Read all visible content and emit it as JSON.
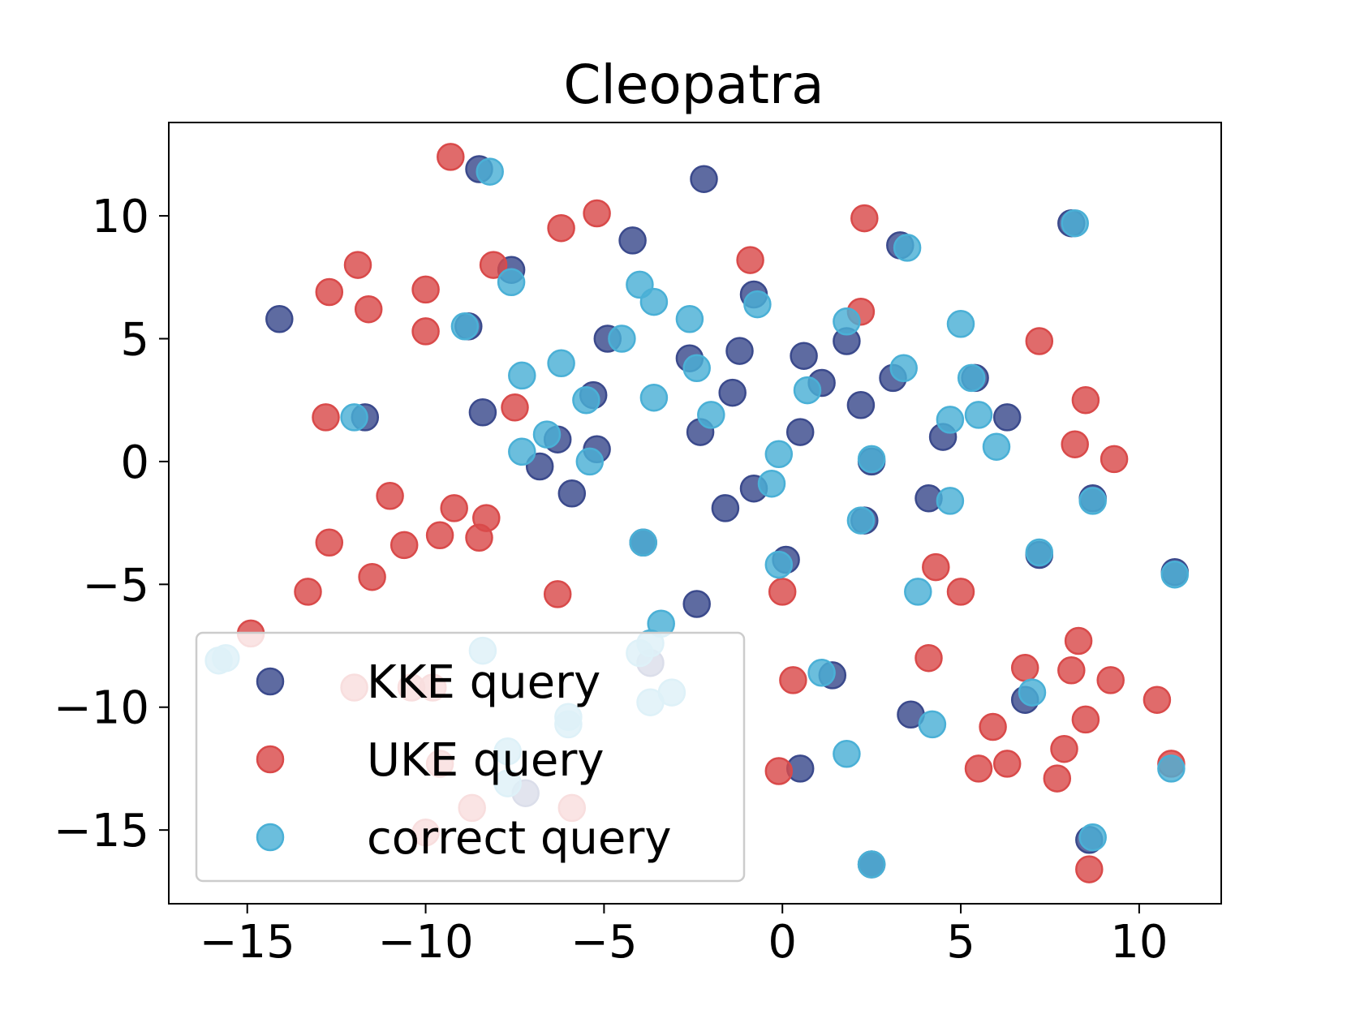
{
  "chart_data": {
    "type": "scatter",
    "title": "Cleopatra",
    "xlabel": "",
    "ylabel": "",
    "xlim": [
      -17.2,
      12.3
    ],
    "ylim": [
      -18,
      13.8
    ],
    "xticks": [
      -15,
      -10,
      -5,
      0,
      5,
      10
    ],
    "yticks": [
      -15,
      -10,
      -5,
      0,
      5,
      10
    ],
    "xtick_labels": [
      "−15",
      "−10",
      "−5",
      "0",
      "5",
      "10"
    ],
    "ytick_labels": [
      "−15",
      "−10",
      "−5",
      "0",
      "5",
      "10"
    ],
    "grid": false,
    "legend_position": "lower-left",
    "series": [
      {
        "name": "KKE query",
        "color": "#3b4a8c",
        "points": [
          [
            -8.5,
            11.9
          ],
          [
            -2.2,
            11.5
          ],
          [
            -4.2,
            9.0
          ],
          [
            -7.6,
            7.8
          ],
          [
            -14.1,
            5.8
          ],
          [
            -8.8,
            5.5
          ],
          [
            -0.8,
            6.8
          ],
          [
            -4.9,
            5.0
          ],
          [
            -1.2,
            4.5
          ],
          [
            -2.6,
            4.2
          ],
          [
            0.6,
            4.3
          ],
          [
            1.1,
            3.2
          ],
          [
            -1.4,
            2.8
          ],
          [
            -5.3,
            2.7
          ],
          [
            -8.4,
            2.0
          ],
          [
            -11.7,
            1.8
          ],
          [
            -2.3,
            1.2
          ],
          [
            0.5,
            1.2
          ],
          [
            2.2,
            2.3
          ],
          [
            3.1,
            3.4
          ],
          [
            -6.3,
            0.9
          ],
          [
            -5.2,
            0.5
          ],
          [
            -6.8,
            -0.2
          ],
          [
            -5.9,
            -1.3
          ],
          [
            -1.6,
            -1.9
          ],
          [
            -0.8,
            -1.1
          ],
          [
            1.8,
            4.9
          ],
          [
            3.3,
            8.8
          ],
          [
            4.5,
            1.0
          ],
          [
            4.1,
            -1.5
          ],
          [
            6.3,
            1.8
          ],
          [
            5.4,
            3.4
          ],
          [
            0.1,
            -4.0
          ],
          [
            -2.4,
            -5.8
          ],
          [
            1.4,
            -8.7
          ],
          [
            -3.7,
            -8.2
          ],
          [
            3.6,
            -10.3
          ],
          [
            6.8,
            -9.7
          ],
          [
            0.5,
            -12.5
          ],
          [
            -7.2,
            -13.5
          ],
          [
            2.5,
            0.0
          ],
          [
            2.3,
            -2.4
          ],
          [
            7.2,
            -3.8
          ],
          [
            8.7,
            -1.5
          ],
          [
            11.0,
            -4.5
          ],
          [
            -3.9,
            -3.3
          ],
          [
            8.1,
            9.7
          ],
          [
            2.5,
            -16.4
          ],
          [
            8.6,
            -15.4
          ]
        ]
      },
      {
        "name": "UKE query",
        "color": "#d94a4a",
        "points": [
          [
            -9.3,
            12.4
          ],
          [
            -5.2,
            10.1
          ],
          [
            -6.2,
            9.5
          ],
          [
            2.3,
            9.9
          ],
          [
            -11.9,
            8.0
          ],
          [
            -8.1,
            8.0
          ],
          [
            -0.9,
            8.2
          ],
          [
            -12.7,
            6.9
          ],
          [
            -10.0,
            7.0
          ],
          [
            -11.6,
            6.2
          ],
          [
            -10.0,
            5.3
          ],
          [
            2.2,
            6.1
          ],
          [
            7.2,
            4.9
          ],
          [
            -12.8,
            1.8
          ],
          [
            -7.5,
            2.2
          ],
          [
            8.5,
            2.5
          ],
          [
            8.2,
            0.7
          ],
          [
            9.3,
            0.1
          ],
          [
            -11.0,
            -1.4
          ],
          [
            -9.2,
            -1.9
          ],
          [
            -8.3,
            -2.3
          ],
          [
            -9.6,
            -3.0
          ],
          [
            -8.5,
            -3.1
          ],
          [
            -12.7,
            -3.3
          ],
          [
            -10.6,
            -3.4
          ],
          [
            -11.5,
            -4.7
          ],
          [
            -13.3,
            -5.3
          ],
          [
            -6.3,
            -5.4
          ],
          [
            -14.9,
            -7.0
          ],
          [
            0.0,
            -5.3
          ],
          [
            4.3,
            -4.3
          ],
          [
            5.0,
            -5.3
          ],
          [
            0.3,
            -8.9
          ],
          [
            4.1,
            -8.0
          ],
          [
            6.8,
            -8.4
          ],
          [
            8.3,
            -7.3
          ],
          [
            8.1,
            -8.5
          ],
          [
            9.2,
            -8.9
          ],
          [
            10.5,
            -9.7
          ],
          [
            8.5,
            -10.5
          ],
          [
            5.9,
            -10.8
          ],
          [
            7.9,
            -11.7
          ],
          [
            6.3,
            -12.3
          ],
          [
            5.5,
            -12.5
          ],
          [
            7.7,
            -12.9
          ],
          [
            10.9,
            -12.3
          ],
          [
            8.6,
            -16.6
          ],
          [
            -0.1,
            -12.6
          ],
          [
            -12.0,
            -9.2
          ],
          [
            -10.4,
            -9.2
          ],
          [
            -9.8,
            -9.2
          ],
          [
            -9.6,
            -12.3
          ],
          [
            -8.7,
            -14.1
          ],
          [
            -10.0,
            -15.1
          ],
          [
            -5.9,
            -14.1
          ]
        ]
      },
      {
        "name": "correct query",
        "color": "#4ab0d6",
        "points": [
          [
            -8.2,
            11.8
          ],
          [
            -4.0,
            7.2
          ],
          [
            -7.6,
            7.3
          ],
          [
            -3.6,
            6.5
          ],
          [
            -2.6,
            5.8
          ],
          [
            -0.7,
            6.4
          ],
          [
            -8.9,
            5.5
          ],
          [
            -4.5,
            5.0
          ],
          [
            1.8,
            5.7
          ],
          [
            5.0,
            5.6
          ],
          [
            3.5,
            8.7
          ],
          [
            -6.2,
            4.0
          ],
          [
            -7.3,
            3.5
          ],
          [
            -3.6,
            2.6
          ],
          [
            -2.4,
            3.8
          ],
          [
            -5.5,
            2.5
          ],
          [
            0.7,
            2.9
          ],
          [
            3.4,
            3.8
          ],
          [
            5.3,
            3.4
          ],
          [
            5.5,
            1.9
          ],
          [
            4.7,
            1.7
          ],
          [
            -2.0,
            1.9
          ],
          [
            -12.0,
            1.8
          ],
          [
            -6.6,
            1.1
          ],
          [
            -7.3,
            0.4
          ],
          [
            -5.4,
            0.0
          ],
          [
            -0.1,
            0.3
          ],
          [
            -0.3,
            -0.9
          ],
          [
            6.0,
            0.6
          ],
          [
            4.7,
            -1.6
          ],
          [
            -0.1,
            -4.2
          ],
          [
            3.8,
            -5.3
          ],
          [
            -3.4,
            -6.6
          ],
          [
            -3.7,
            -7.4
          ],
          [
            -4.0,
            -7.8
          ],
          [
            -8.4,
            -7.7
          ],
          [
            -3.1,
            -9.4
          ],
          [
            -3.7,
            -9.8
          ],
          [
            1.1,
            -8.6
          ],
          [
            7.0,
            -9.4
          ],
          [
            4.2,
            -10.7
          ],
          [
            1.8,
            -11.9
          ],
          [
            -6.0,
            -10.4
          ],
          [
            -6.0,
            -10.7
          ],
          [
            -7.7,
            -11.8
          ],
          [
            -7.7,
            -13.1
          ],
          [
            11.0,
            -4.6
          ],
          [
            10.9,
            -12.5
          ],
          [
            -15.8,
            -8.1
          ],
          [
            -15.6,
            -8.0
          ],
          [
            2.5,
            0.1
          ],
          [
            2.2,
            -2.4
          ],
          [
            7.2,
            -3.7
          ],
          [
            8.7,
            -1.6
          ],
          [
            -3.9,
            -3.3
          ],
          [
            8.2,
            9.7
          ],
          [
            2.5,
            -16.4
          ],
          [
            8.7,
            -15.3
          ]
        ]
      }
    ]
  }
}
